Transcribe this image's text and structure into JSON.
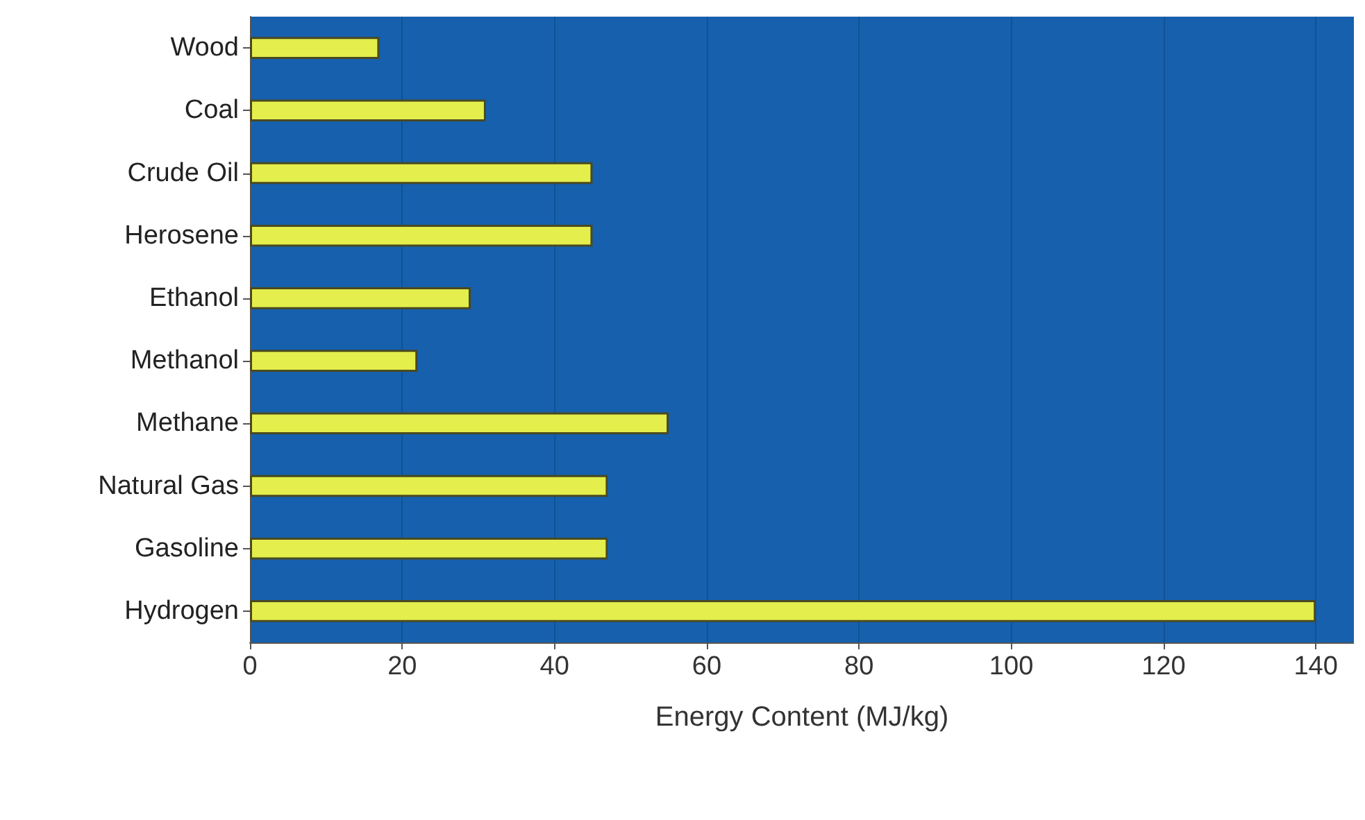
{
  "chart_data": {
    "type": "bar",
    "orientation": "horizontal",
    "xlabel": "Energy Content (MJ/kg)",
    "categories": [
      "Wood",
      "Coal",
      "Crude Oil",
      "Herosene",
      "Ethanol",
      "Methanol",
      "Methane",
      "Natural Gas",
      "Gasoline",
      "Hydrogen"
    ],
    "values": [
      17,
      31,
      45,
      45,
      29,
      22,
      55,
      47,
      47,
      140
    ],
    "color": "#e4ee4c",
    "xlim": [
      0,
      145
    ],
    "xticks": [
      0,
      20,
      40,
      60,
      80,
      100,
      120,
      140
    ],
    "grid": "x"
  }
}
